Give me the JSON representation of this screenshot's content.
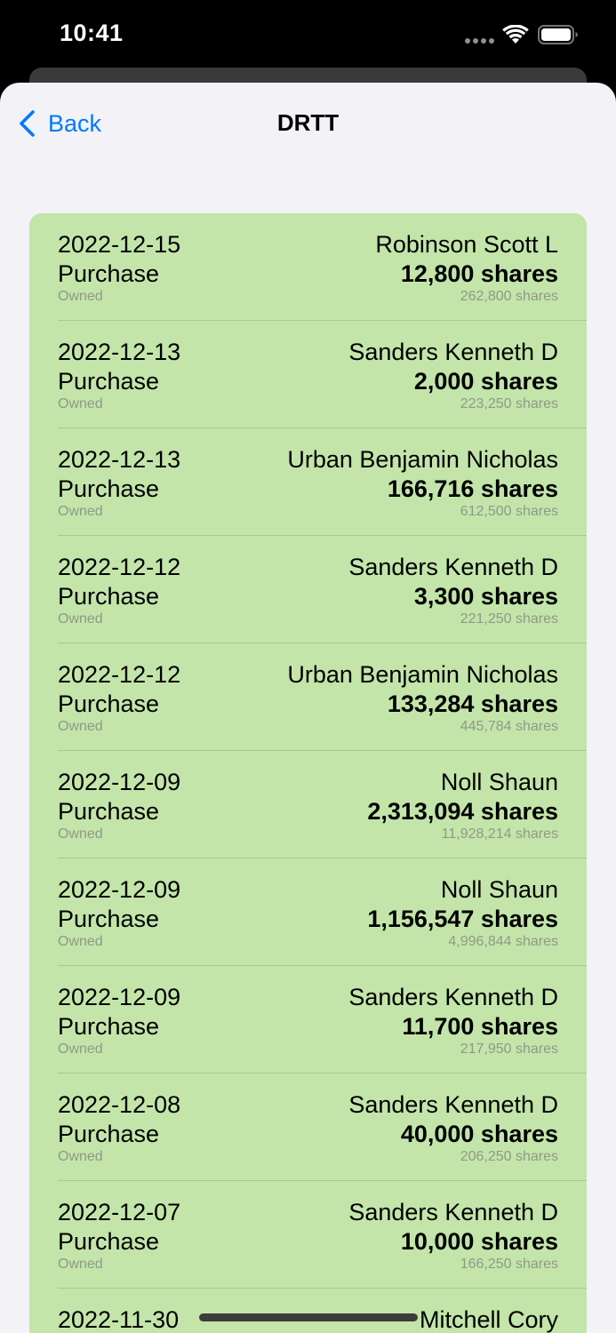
{
  "status_bar": {
    "time": "10:41",
    "icons": [
      "cellular-signal-icon",
      "wifi-icon",
      "battery-icon"
    ]
  },
  "nav": {
    "back_label": "Back",
    "title": "DRTT",
    "back_icon": "chevron-left-icon"
  },
  "colors": {
    "accent": "#007aff",
    "card_background": "#c3e5aa",
    "sheet_background": "#f2f2f7",
    "secondary_text": "#8e9a86"
  },
  "transactions": [
    {
      "date": "2022-12-15",
      "type": "Purchase",
      "owned_label": "Owned",
      "name": "Robinson Scott L",
      "shares": "12,800 shares",
      "owned": "262,800 shares"
    },
    {
      "date": "2022-12-13",
      "type": "Purchase",
      "owned_label": "Owned",
      "name": "Sanders Kenneth D",
      "shares": "2,000 shares",
      "owned": "223,250 shares"
    },
    {
      "date": "2022-12-13",
      "type": "Purchase",
      "owned_label": "Owned",
      "name": "Urban Benjamin Nicholas",
      "shares": "166,716 shares",
      "owned": "612,500 shares"
    },
    {
      "date": "2022-12-12",
      "type": "Purchase",
      "owned_label": "Owned",
      "name": "Sanders Kenneth D",
      "shares": "3,300 shares",
      "owned": "221,250 shares"
    },
    {
      "date": "2022-12-12",
      "type": "Purchase",
      "owned_label": "Owned",
      "name": "Urban Benjamin Nicholas",
      "shares": "133,284 shares",
      "owned": "445,784 shares"
    },
    {
      "date": "2022-12-09",
      "type": "Purchase",
      "owned_label": "Owned",
      "name": "Noll Shaun",
      "shares": "2,313,094 shares",
      "owned": "11,928,214 shares"
    },
    {
      "date": "2022-12-09",
      "type": "Purchase",
      "owned_label": "Owned",
      "name": "Noll Shaun",
      "shares": "1,156,547 shares",
      "owned": "4,996,844 shares"
    },
    {
      "date": "2022-12-09",
      "type": "Purchase",
      "owned_label": "Owned",
      "name": "Sanders Kenneth D",
      "shares": "11,700 shares",
      "owned": "217,950 shares"
    },
    {
      "date": "2022-12-08",
      "type": "Purchase",
      "owned_label": "Owned",
      "name": "Sanders Kenneth D",
      "shares": "40,000 shares",
      "owned": "206,250 shares"
    },
    {
      "date": "2022-12-07",
      "type": "Purchase",
      "owned_label": "Owned",
      "name": "Sanders Kenneth D",
      "shares": "10,000 shares",
      "owned": "166,250 shares"
    },
    {
      "date": "2022-11-30",
      "type": "",
      "owned_label": "",
      "name": "Mitchell Cory",
      "shares": "",
      "owned": ""
    }
  ]
}
